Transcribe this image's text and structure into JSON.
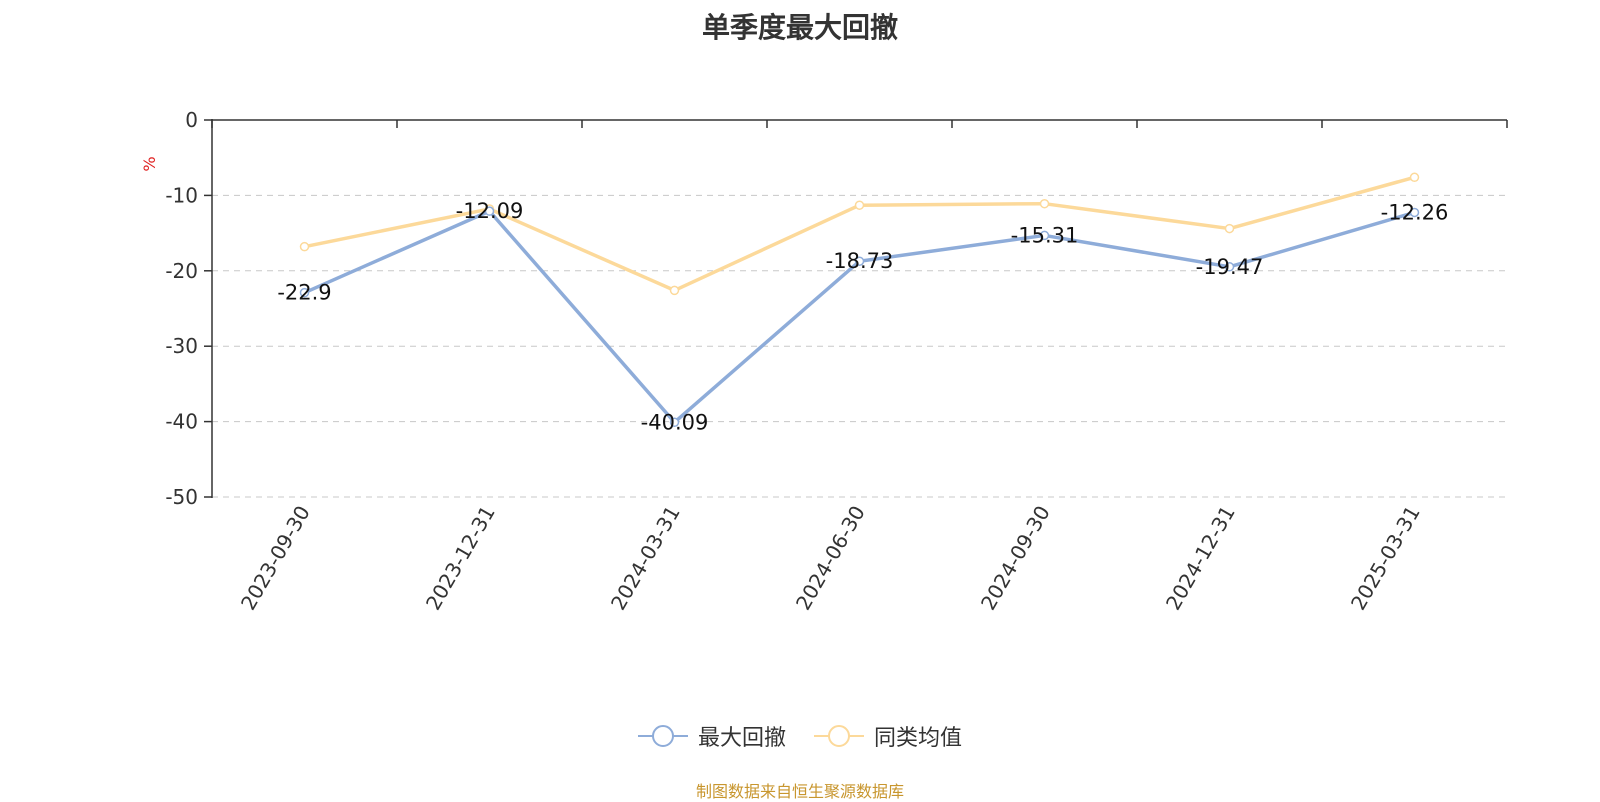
{
  "chart_data": {
    "type": "line",
    "title": "单季度最大回撤",
    "ylabel": "%",
    "categories": [
      "2023-09-30",
      "2023-12-31",
      "2024-03-31",
      "2024-06-30",
      "2024-09-30",
      "2024-12-31",
      "2025-03-31"
    ],
    "ylim": [
      -50,
      0
    ],
    "yticks": [
      0,
      -10,
      -20,
      -30,
      -40,
      -50
    ],
    "grid": true,
    "legend_position": "bottom",
    "series": [
      {
        "name": "最大回撤",
        "color": "#8eacd9",
        "values": [
          -22.9,
          -12.09,
          -40.09,
          -18.73,
          -15.31,
          -19.47,
          -12.26
        ],
        "labels": [
          "-22.9",
          "-12.09",
          "-40.09",
          "-18.73",
          "-15.31",
          "-19.47",
          "-12.26"
        ]
      },
      {
        "name": "同类均值",
        "color": "#fcd99a",
        "values": [
          -16.8,
          -11.8,
          -22.6,
          -11.3,
          -11.1,
          -14.4,
          -7.6
        ]
      }
    ]
  },
  "source": "制图数据来自恒生聚源数据库"
}
